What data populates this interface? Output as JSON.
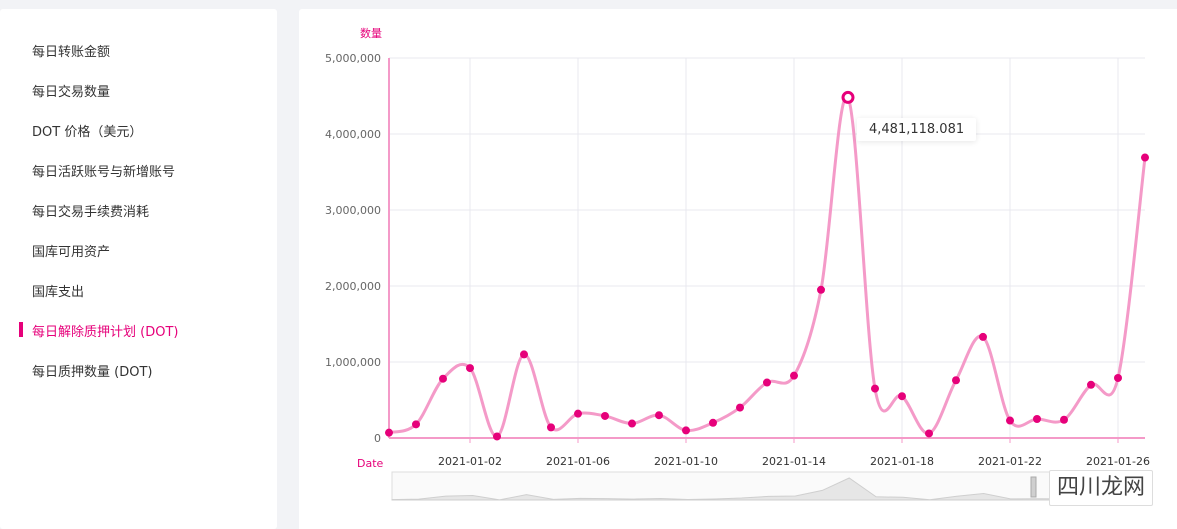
{
  "sidebar": {
    "items": [
      {
        "label": "每日转账金额",
        "active": false
      },
      {
        "label": "每日交易数量",
        "active": false
      },
      {
        "label": "DOT 价格（美元）",
        "active": false
      },
      {
        "label": "每日活跃账号与新增账号",
        "active": false
      },
      {
        "label": "每日交易手续费消耗",
        "active": false
      },
      {
        "label": "国库可用资产",
        "active": false
      },
      {
        "label": "国库支出",
        "active": false
      },
      {
        "label": "每日解除质押计划 (DOT)",
        "active": true
      },
      {
        "label": "每日质押数量 (DOT)",
        "active": false
      }
    ]
  },
  "tooltip": {
    "value": "4,481,118.081"
  },
  "watermark": {
    "text": "四川龙网"
  },
  "colors": {
    "accent": "#e6007a",
    "line": "#f49ac8",
    "grid": "#e9e9ef"
  },
  "chart_data": {
    "type": "line",
    "ylabel": "数量",
    "xlabel": "Date",
    "ylim": [
      0,
      5000000
    ],
    "yticks": [
      0,
      1000000,
      2000000,
      3000000,
      4000000,
      5000000
    ],
    "ytick_labels": [
      "0",
      "1,000,000",
      "2,000,000",
      "3,000,000",
      "4,000,000",
      "5,000,000"
    ],
    "xtick_labels": [
      "2021-01-02",
      "2021-01-06",
      "2021-01-10",
      "2021-01-14",
      "2021-01-18",
      "2021-01-22",
      "2021-01-26"
    ],
    "xtick_dates": [
      "2021-01-02",
      "2021-01-06",
      "2021-01-10",
      "2021-01-14",
      "2021-01-18",
      "2021-01-22",
      "2021-01-26"
    ],
    "grid": true,
    "x": [
      "2020-12-30",
      "2020-12-31",
      "2021-01-01",
      "2021-01-02",
      "2021-01-03",
      "2021-01-04",
      "2021-01-05",
      "2021-01-06",
      "2021-01-07",
      "2021-01-08",
      "2021-01-09",
      "2021-01-10",
      "2021-01-11",
      "2021-01-12",
      "2021-01-13",
      "2021-01-14",
      "2021-01-15",
      "2021-01-16",
      "2021-01-17",
      "2021-01-18",
      "2021-01-19",
      "2021-01-20",
      "2021-01-21",
      "2021-01-22",
      "2021-01-23",
      "2021-01-24",
      "2021-01-25",
      "2021-01-26",
      "2021-01-27"
    ],
    "values": [
      70000,
      180000,
      780000,
      920000,
      20000,
      1100000,
      140000,
      320000,
      290000,
      190000,
      300000,
      100000,
      200000,
      400000,
      730000,
      820000,
      1950000,
      4481118.081,
      650000,
      550000,
      60000,
      760000,
      1330000,
      230000,
      250000,
      240000,
      700000,
      790000,
      3690000
    ],
    "highlight_index": 17
  }
}
